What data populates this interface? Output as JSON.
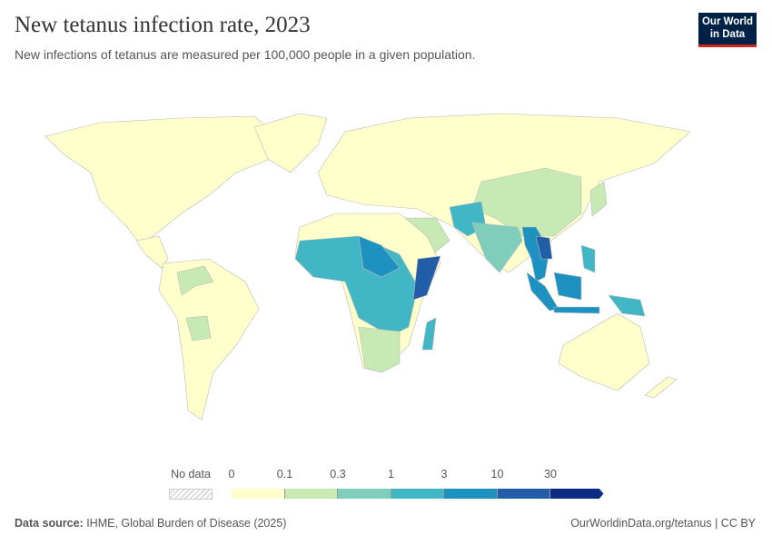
{
  "header": {
    "title": "New tetanus infection rate, 2023",
    "subtitle": "New infections of tetanus are measured per 100,000 people in a given population.",
    "logo_line1": "Our World",
    "logo_line2": "in Data"
  },
  "legend": {
    "no_data_label": "No data",
    "thresholds": [
      "0",
      "0.1",
      "0.3",
      "1",
      "3",
      "10",
      "30"
    ],
    "colors": [
      "#ffffcc",
      "#c7e9b4",
      "#7fcdbb",
      "#41b6c4",
      "#1d91c0",
      "#225ea8",
      "#0c2c84"
    ],
    "no_data_color": "#e6e6e6"
  },
  "footer": {
    "source_label": "Data source:",
    "source_text": " IHME, Global Burden of Disease (2025)",
    "url_text": "OurWorldinData.org/tetanus | CC BY"
  }
}
